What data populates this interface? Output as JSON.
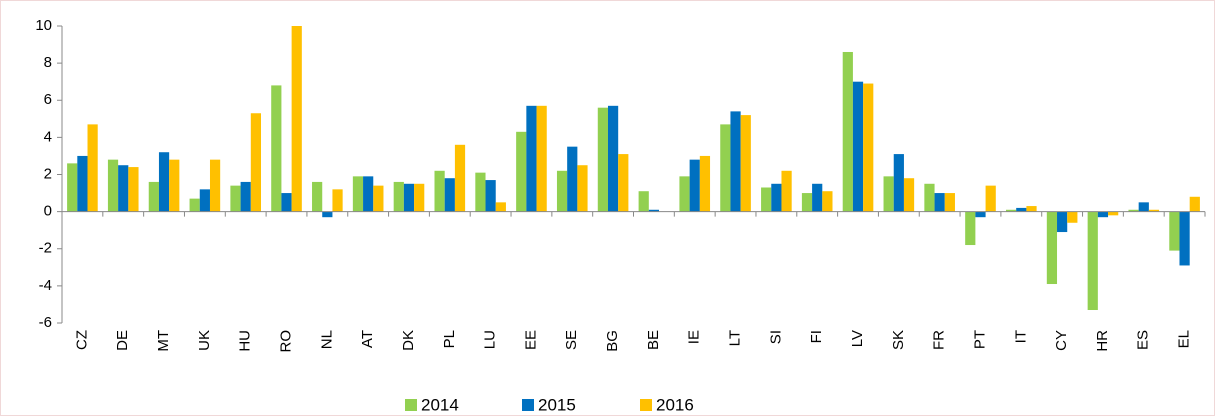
{
  "chart_data": {
    "type": "bar",
    "categories": [
      "CZ",
      "DE",
      "MT",
      "UK",
      "HU",
      "RO",
      "NL",
      "AT",
      "DK",
      "PL",
      "LU",
      "EE",
      "SE",
      "BG",
      "BE",
      "IE",
      "LT",
      "SI",
      "FI",
      "LV",
      "SK",
      "FR",
      "PT",
      "IT",
      "CY",
      "HR",
      "ES",
      "EL"
    ],
    "series": [
      {
        "name": "2014",
        "color": "#92d050",
        "values": [
          2.6,
          2.8,
          1.6,
          0.7,
          1.4,
          6.8,
          1.6,
          1.9,
          1.6,
          2.2,
          2.1,
          4.3,
          2.2,
          5.6,
          1.1,
          1.9,
          4.7,
          1.3,
          1.0,
          8.6,
          1.9,
          1.5,
          -1.8,
          0.1,
          -3.9,
          -5.3,
          0.1,
          -2.1
        ]
      },
      {
        "name": "2015",
        "color": "#0070c0",
        "values": [
          3.0,
          2.5,
          3.2,
          1.2,
          1.6,
          1.0,
          -0.3,
          1.9,
          1.5,
          1.8,
          1.7,
          5.7,
          3.5,
          5.7,
          0.1,
          2.8,
          5.4,
          1.5,
          1.5,
          7.0,
          3.1,
          1.0,
          -0.3,
          0.2,
          -1.1,
          -0.3,
          0.5,
          -2.9
        ]
      },
      {
        "name": "2016",
        "color": "#ffc000",
        "values": [
          4.7,
          2.4,
          2.8,
          2.8,
          5.3,
          10.0,
          1.2,
          1.4,
          1.5,
          3.6,
          0.5,
          5.7,
          2.5,
          3.1,
          0.0,
          3.0,
          5.2,
          2.2,
          1.1,
          6.9,
          1.8,
          1.0,
          1.4,
          0.3,
          -0.6,
          -0.2,
          0.1,
          0.8
        ]
      }
    ],
    "ylim": [
      -6,
      10
    ],
    "yticks": [
      -6,
      -4,
      -2,
      0,
      2,
      4,
      6,
      8,
      10
    ],
    "grid": false,
    "legend": "bottom"
  }
}
